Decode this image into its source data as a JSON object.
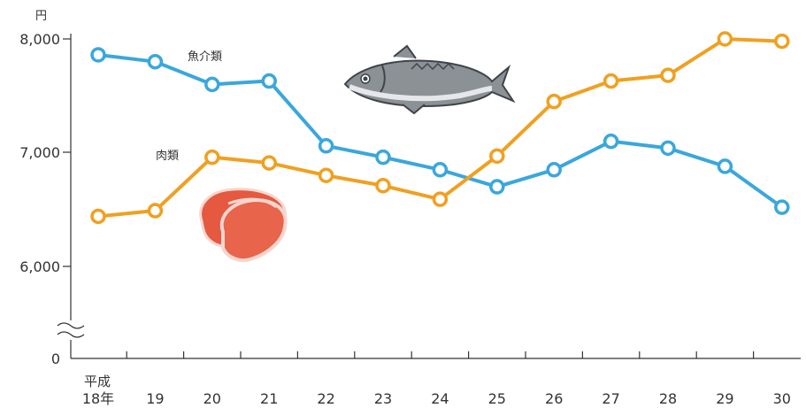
{
  "chart_data": {
    "type": "line",
    "y_unit": "円",
    "y_ticks": [
      "8,000",
      "7,000",
      "6,000"
    ],
    "y_tick_values": [
      8000,
      7000,
      6000
    ],
    "y_zero_label": "0",
    "ylim": [
      6000,
      8000
    ],
    "y_axis_broken": true,
    "x_era_label": "平成",
    "categories": [
      "18年",
      "19",
      "20",
      "21",
      "22",
      "23",
      "24",
      "25",
      "26",
      "27",
      "28",
      "29",
      "30"
    ],
    "series": [
      {
        "name": "魚介類",
        "color": "#3aa7dc",
        "values": [
          7860,
          7800,
          7600,
          7630,
          7060,
          6960,
          6850,
          6700,
          6850,
          7100,
          7040,
          6880,
          6520
        ]
      },
      {
        "name": "肉類",
        "color": "#f0a020",
        "values": [
          6440,
          6490,
          6960,
          6910,
          6800,
          6710,
          6590,
          6970,
          7450,
          7630,
          7680,
          8000,
          7980
        ]
      }
    ],
    "grid": false,
    "legend": "inline"
  }
}
